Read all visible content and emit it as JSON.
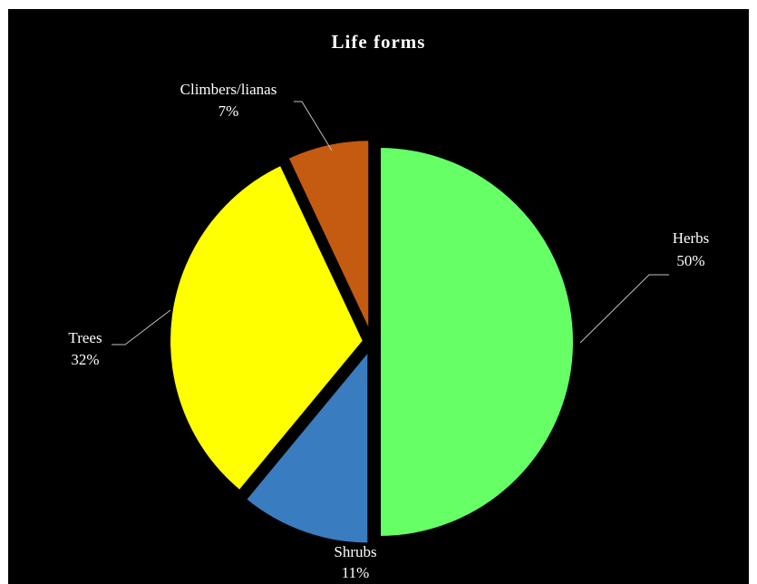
{
  "chart_data": {
    "type": "pie",
    "title": "Life forms",
    "slices": [
      {
        "label": "Herbs",
        "value": 50,
        "value_label": "50%",
        "color": "#66FF66"
      },
      {
        "label": "Shrubs",
        "value": 11,
        "value_label": "11%",
        "color": "#3A7CC0"
      },
      {
        "label": "Trees",
        "value": 32,
        "value_label": "32%",
        "color": "#FFFF00"
      },
      {
        "label": "Climbers/lianas",
        "value": 7,
        "value_label": "7%",
        "color": "#C55A11"
      }
    ],
    "start": "12 o'clock",
    "direction": "clockwise",
    "exploded": true,
    "legend": "none",
    "background_color": "#000000",
    "frame_color": "#ffffff"
  }
}
